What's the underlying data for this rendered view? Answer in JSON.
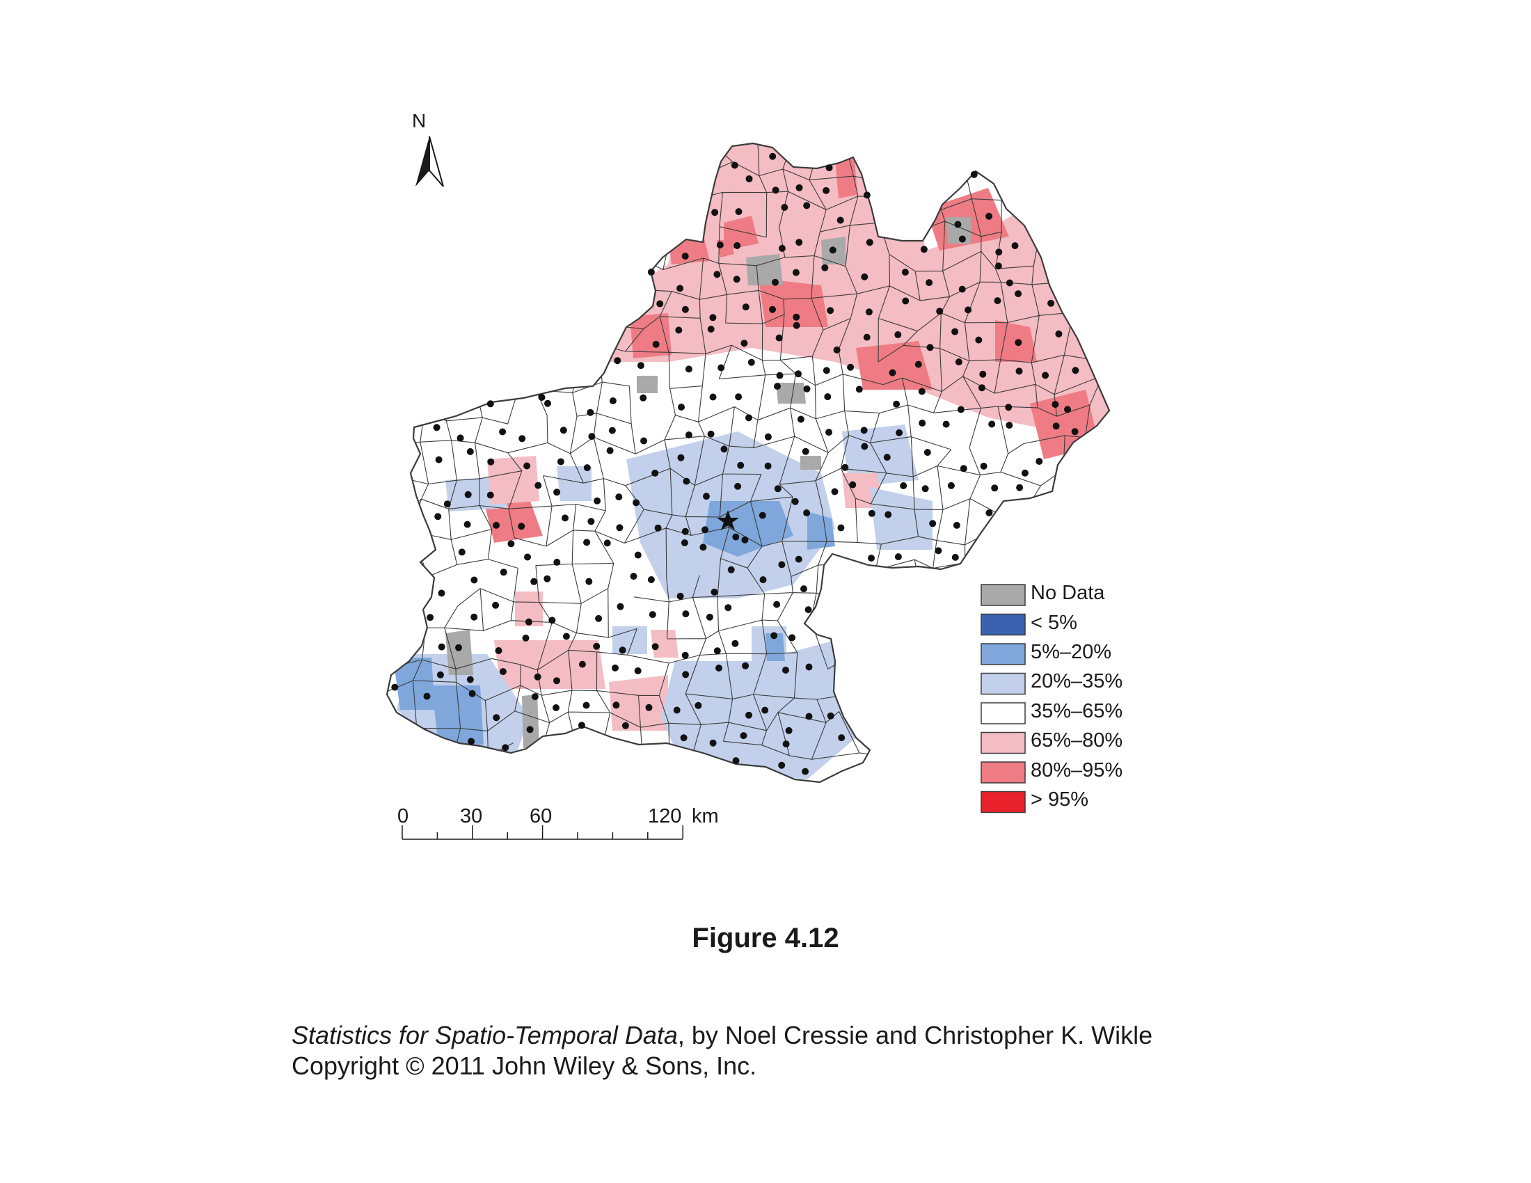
{
  "map": {
    "north_label": "N",
    "scale_bar": {
      "ticks": [
        "0",
        "30",
        "60",
        "120"
      ],
      "unit": "km"
    },
    "legend": [
      {
        "label": "No Data",
        "color": "#a9a9a9"
      },
      {
        "label": "< 5%",
        "color": "#3a62b0"
      },
      {
        "label": "5%–20%",
        "color": "#7fa7dc"
      },
      {
        "label": "20%–35%",
        "color": "#c2d0eb"
      },
      {
        "label": "35%–65%",
        "color": "#ffffff"
      },
      {
        "label": "65%–80%",
        "color": "#f4bcc3"
      },
      {
        "label": "80%–95%",
        "color": "#ef7c84"
      },
      {
        "label": "> 95%",
        "color": "#e8212b"
      }
    ],
    "boundary_color": "#3b3b3b",
    "dot_color": "#111111"
  },
  "caption": {
    "figure_label": "Figure 4.12",
    "book_title": "Statistics for Spatio-Temporal Data",
    "book_authors": ", by Noel Cressie and Christopher K. Wikle",
    "copyright": "Copyright © 2011 John Wiley & Sons, Inc."
  }
}
